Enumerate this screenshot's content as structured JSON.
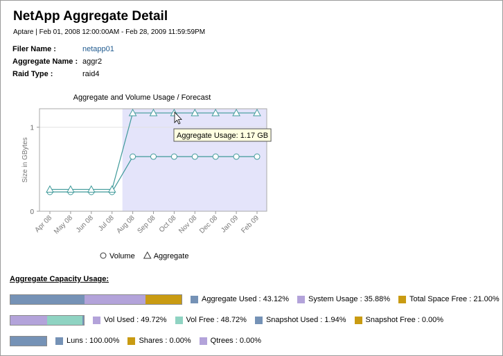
{
  "header": {
    "title": "NetApp Aggregate Detail",
    "subtitle": "Aptare | Feb 01, 2008 12:00:00AM - Feb 28, 2009 11:59:59PM"
  },
  "info": [
    {
      "label": "Filer Name :",
      "value": "netapp01"
    },
    {
      "label": "Aggregate Name :",
      "value": "aggr2"
    },
    {
      "label": "Raid Type :",
      "value": "raid4"
    }
  ],
  "chart_data": {
    "type": "line",
    "title": "Aggregate and Volume Usage / Forecast",
    "y_label": "Size in GBytes",
    "categories": [
      "Apr 08",
      "May 08",
      "Jun 08",
      "Jul 08",
      "Aug 08",
      "Sep 08",
      "Oct 08",
      "Nov 08",
      "Dec 08",
      "Jan 09",
      "Feb 09"
    ],
    "series": [
      {
        "name": "Volume",
        "color": "#3f9a9a",
        "marker": "circle",
        "values": [
          0.23,
          0.23,
          0.23,
          0.23,
          0.65,
          0.65,
          0.65,
          0.65,
          0.65,
          0.65,
          0.65
        ]
      },
      {
        "name": "Aggregate",
        "color": "#3f9a9a",
        "marker": "triangle",
        "values": [
          0.26,
          0.26,
          0.26,
          0.26,
          1.17,
          1.17,
          1.17,
          1.17,
          1.17,
          1.17,
          1.17
        ]
      }
    ],
    "ylim": [
      0,
      1.22
    ],
    "yticks": [
      0,
      1
    ],
    "grid": true,
    "annotation": "Aggregate Usage: 1.17 GB"
  },
  "capacity": {
    "title": "Aggregate Capacity Usage:",
    "bars": [
      {
        "segments": [
          {
            "value": 43.12,
            "label": "Aggregate Used : 43.12%",
            "color": "#7592b6"
          },
          {
            "value": 35.88,
            "label": "System Usage : 35.88%",
            "color": "#b3a3da"
          },
          {
            "value": 21.0,
            "label": "Total Space Free : 21.00%",
            "color": "#c99b12"
          }
        ]
      },
      {
        "segments": [
          {
            "value": 49.72,
            "label": "Vol Used : 49.72%",
            "color": "#b3a3da"
          },
          {
            "value": 48.72,
            "label": "Vol Free : 48.72%",
            "color": "#8fd3c2"
          },
          {
            "value": 1.94,
            "label": "Snapshot Used : 1.94%",
            "color": "#7592b6"
          },
          {
            "value": 0.0,
            "label": "Snapshot Free : 0.00%",
            "color": "#c99b12"
          }
        ]
      },
      {
        "segments": [
          {
            "value": 100.0,
            "label": "Luns : 100.00%",
            "color": "#7592b6"
          },
          {
            "value": 0.0,
            "label": "Shares : 0.00%",
            "color": "#c99b12"
          },
          {
            "value": 0.0,
            "label": "Qtrees : 0.00%",
            "color": "#b3a3da"
          }
        ]
      }
    ]
  }
}
